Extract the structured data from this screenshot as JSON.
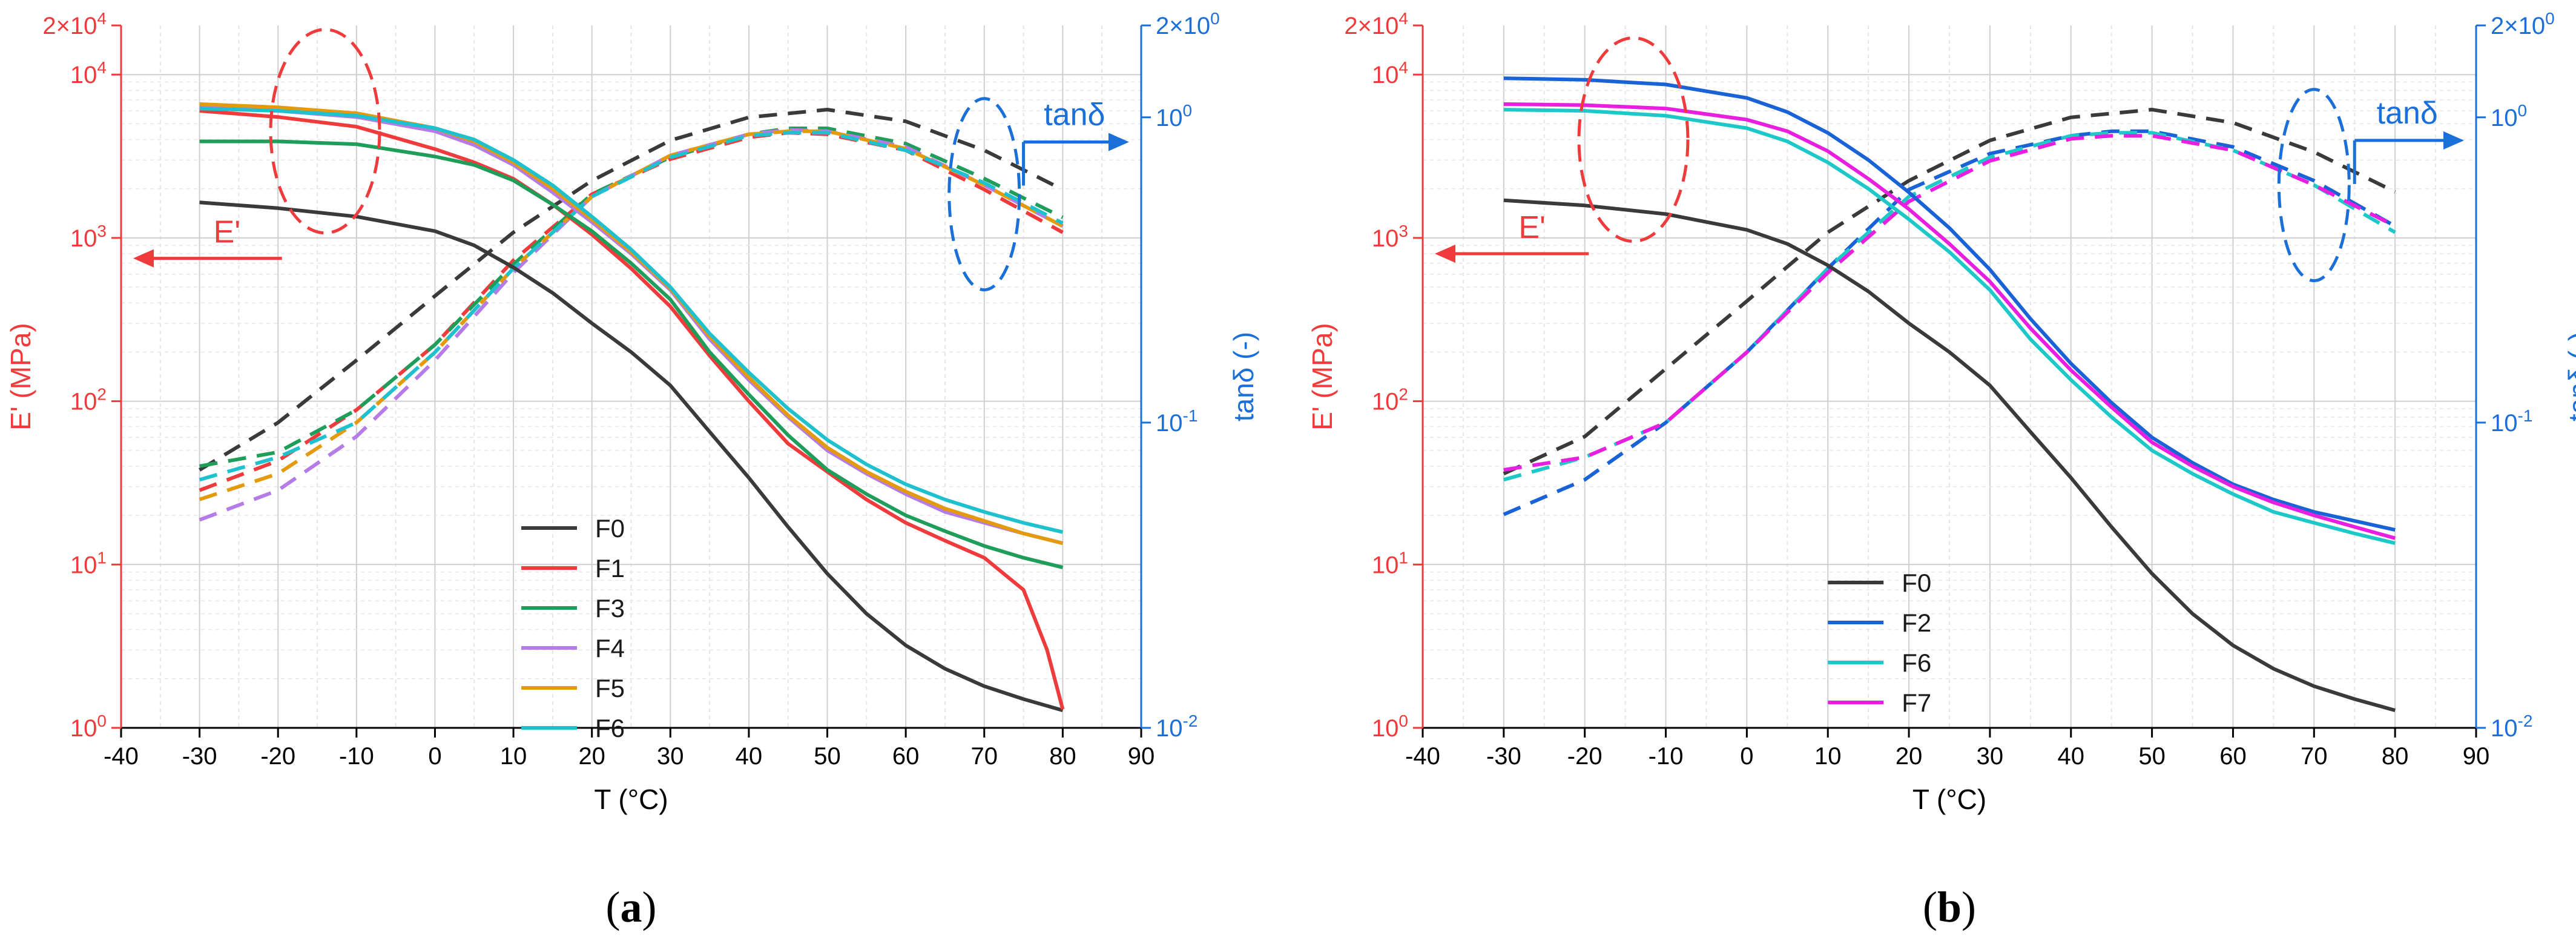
{
  "chart_data": [
    {
      "type": "line",
      "panel_label": "a",
      "panel_caption": [
        "(",
        "a",
        ")"
      ],
      "xlabel": "T (°C)",
      "ylabel_left": "E' (MPa)",
      "ylabel_right": "tanδ (-)",
      "xlim": [
        -40,
        90
      ],
      "xticks": [
        "-40",
        "-30",
        "-20",
        "-10",
        "0",
        "10",
        "20",
        "30",
        "40",
        "50",
        "60",
        "70",
        "80",
        "90"
      ],
      "ylim_left": [
        1,
        20000
      ],
      "yticks_left": [
        {
          "value": 1,
          "base": "10",
          "exp": "0"
        },
        {
          "value": 10,
          "base": "10",
          "exp": "1"
        },
        {
          "value": 100,
          "base": "10",
          "exp": "2"
        },
        {
          "value": 1000,
          "base": "10",
          "exp": "3"
        },
        {
          "value": 10000,
          "base": "10",
          "exp": "4"
        },
        {
          "value": 20000,
          "base": "2×10",
          "exp": "4"
        }
      ],
      "ylim_right": [
        0.01,
        2
      ],
      "yticks_right": [
        {
          "value": 0.01,
          "base": "10",
          "exp": "-2"
        },
        {
          "value": 0.1,
          "base": "10",
          "exp": "-1"
        },
        {
          "value": 1,
          "base": "10",
          "exp": "0"
        },
        {
          "value": 2,
          "base": "2×10",
          "exp": "0"
        }
      ],
      "annotations": {
        "eprime": "E'",
        "tand": "tanδ"
      },
      "legend": [
        "F0",
        "F1",
        "F3",
        "F4",
        "F5",
        "F6"
      ],
      "series": [
        {
          "name": "F0",
          "color": "#3a3a3a",
          "x": [
            -30,
            -20,
            -10,
            0,
            5,
            10,
            15,
            20,
            25,
            30,
            35,
            40,
            45,
            50,
            55,
            60,
            65,
            70,
            75,
            80
          ],
          "modulus": [
            1650,
            1520,
            1350,
            1100,
            900,
            660,
            460,
            300,
            200,
            125,
            65,
            34,
            17,
            8.8,
            5,
            3.2,
            2.3,
            1.8,
            1.5,
            1.28
          ],
          "tand_x": [
            -30,
            -20,
            -10,
            0,
            10,
            20,
            30,
            40,
            50,
            60,
            70,
            80
          ],
          "tand": [
            0.07,
            0.1,
            0.16,
            0.26,
            0.42,
            0.62,
            0.84,
            1.0,
            1.06,
            0.97,
            0.78,
            0.58
          ]
        },
        {
          "name": "F1",
          "color": "#ef3b3b",
          "x": [
            -30,
            -20,
            -10,
            0,
            5,
            10,
            15,
            20,
            25,
            30,
            35,
            40,
            45,
            50,
            55,
            60,
            65,
            70,
            75,
            78,
            80
          ],
          "modulus": [
            6000,
            5500,
            4800,
            3500,
            2900,
            2300,
            1600,
            1050,
            650,
            380,
            190,
            100,
            55,
            37,
            25,
            18,
            14,
            11,
            7,
            3,
            1.3
          ],
          "tand_x": [
            -30,
            -20,
            -10,
            0,
            10,
            20,
            30,
            40,
            45,
            50,
            60,
            70,
            80
          ],
          "tand": [
            0.06,
            0.075,
            0.11,
            0.18,
            0.34,
            0.56,
            0.73,
            0.86,
            0.89,
            0.88,
            0.78,
            0.58,
            0.42
          ]
        },
        {
          "name": "F3",
          "color": "#1f9d5a",
          "x": [
            -30,
            -20,
            -10,
            0,
            5,
            10,
            15,
            20,
            25,
            30,
            35,
            40,
            45,
            50,
            55,
            60,
            65,
            70,
            75,
            80
          ],
          "modulus": [
            3900,
            3900,
            3750,
            3150,
            2800,
            2250,
            1600,
            1100,
            700,
            420,
            200,
            110,
            62,
            38,
            27,
            20,
            16,
            13,
            11,
            9.6
          ],
          "tand_x": [
            -30,
            -20,
            -10,
            0,
            10,
            20,
            30,
            40,
            45,
            50,
            60,
            70,
            80
          ],
          "tand": [
            0.072,
            0.08,
            0.11,
            0.18,
            0.33,
            0.56,
            0.74,
            0.88,
            0.92,
            0.92,
            0.82,
            0.63,
            0.47
          ]
        },
        {
          "name": "F4",
          "color": "#b57be6",
          "x": [
            -30,
            -20,
            -10,
            0,
            5,
            10,
            15,
            20,
            25,
            30,
            35,
            40,
            45,
            50,
            55,
            60,
            65,
            70,
            75,
            80
          ],
          "modulus": [
            6300,
            6000,
            5500,
            4500,
            3700,
            2800,
            1900,
            1250,
            800,
            480,
            240,
            135,
            80,
            50,
            36,
            27,
            21,
            18,
            15.5,
            13.5
          ],
          "tand_x": [
            -30,
            -20,
            -10,
            0,
            10,
            20,
            30,
            40,
            45,
            50,
            60,
            70,
            80
          ],
          "tand": [
            0.048,
            0.06,
            0.09,
            0.16,
            0.31,
            0.55,
            0.75,
            0.88,
            0.91,
            0.9,
            0.8,
            0.6,
            0.44
          ]
        },
        {
          "name": "F5",
          "color": "#e39a0c",
          "x": [
            -30,
            -20,
            -10,
            0,
            5,
            10,
            15,
            20,
            25,
            30,
            35,
            40,
            45,
            50,
            55,
            60,
            65,
            70,
            75,
            80
          ],
          "modulus": [
            6600,
            6300,
            5800,
            4700,
            3900,
            2900,
            2000,
            1300,
            820,
            490,
            250,
            140,
            82,
            52,
            37,
            28,
            22,
            18.5,
            15.5,
            13.5
          ],
          "tand_x": [
            -30,
            -20,
            -10,
            0,
            10,
            20,
            30,
            40,
            45,
            50,
            60,
            70,
            80
          ],
          "tand": [
            0.056,
            0.068,
            0.1,
            0.17,
            0.32,
            0.55,
            0.75,
            0.88,
            0.9,
            0.9,
            0.79,
            0.6,
            0.44
          ]
        },
        {
          "name": "F6",
          "color": "#1fc1cf",
          "x": [
            -30,
            -20,
            -10,
            0,
            5,
            10,
            15,
            20,
            25,
            30,
            35,
            40,
            45,
            50,
            55,
            60,
            65,
            70,
            75,
            80
          ],
          "modulus": [
            6200,
            6000,
            5600,
            4700,
            4000,
            3000,
            2100,
            1350,
            850,
            500,
            260,
            150,
            90,
            58,
            41,
            31,
            25,
            21,
            18,
            15.8
          ],
          "tand_x": [
            -30,
            -20,
            -10,
            0,
            10,
            20,
            30,
            40,
            45,
            50,
            60,
            70,
            80
          ],
          "tand": [
            0.065,
            0.077,
            0.1,
            0.17,
            0.32,
            0.55,
            0.74,
            0.87,
            0.89,
            0.89,
            0.78,
            0.61,
            0.45
          ]
        }
      ]
    },
    {
      "type": "line",
      "panel_label": "b",
      "panel_caption": [
        "(",
        "b",
        ")"
      ],
      "xlabel": "T (°C)",
      "ylabel_left": "E' (MPa)",
      "ylabel_right": "tanδ (-)",
      "xlim": [
        -40,
        90
      ],
      "xticks": [
        "-40",
        "-30",
        "-20",
        "-10",
        "0",
        "10",
        "20",
        "30",
        "40",
        "50",
        "60",
        "70",
        "80",
        "90"
      ],
      "ylim_left": [
        1,
        20000
      ],
      "yticks_left": [
        {
          "value": 1,
          "base": "10",
          "exp": "0"
        },
        {
          "value": 10,
          "base": "10",
          "exp": "1"
        },
        {
          "value": 100,
          "base": "10",
          "exp": "2"
        },
        {
          "value": 1000,
          "base": "10",
          "exp": "3"
        },
        {
          "value": 10000,
          "base": "10",
          "exp": "4"
        },
        {
          "value": 20000,
          "base": "2×10",
          "exp": "4"
        }
      ],
      "ylim_right": [
        0.01,
        2
      ],
      "yticks_right": [
        {
          "value": 0.01,
          "base": "10",
          "exp": "-2"
        },
        {
          "value": 0.1,
          "base": "10",
          "exp": "-1"
        },
        {
          "value": 1,
          "base": "10",
          "exp": "0"
        },
        {
          "value": 2,
          "base": "2×10",
          "exp": "0"
        }
      ],
      "annotations": {
        "eprime": "E'",
        "tand": "tanδ"
      },
      "legend": [
        "F0",
        "F2",
        "F6",
        "F7"
      ],
      "series": [
        {
          "name": "F0",
          "color": "#3a3a3a",
          "x": [
            -30,
            -20,
            -10,
            0,
            5,
            10,
            15,
            20,
            25,
            30,
            35,
            40,
            45,
            50,
            55,
            60,
            65,
            70,
            75,
            80
          ],
          "modulus": [
            1700,
            1580,
            1400,
            1120,
            920,
            680,
            470,
            300,
            200,
            125,
            65,
            34,
            17,
            8.8,
            5,
            3.2,
            2.3,
            1.8,
            1.5,
            1.28
          ],
          "tand_x": [
            -30,
            -20,
            -10,
            0,
            10,
            20,
            30,
            40,
            50,
            60,
            70,
            80
          ],
          "tand": [
            0.068,
            0.09,
            0.15,
            0.25,
            0.42,
            0.62,
            0.84,
            1.0,
            1.06,
            0.96,
            0.77,
            0.57
          ]
        },
        {
          "name": "F2",
          "color": "#1a63d6",
          "x": [
            -30,
            -20,
            -10,
            0,
            5,
            10,
            15,
            20,
            25,
            30,
            35,
            40,
            45,
            50,
            55,
            60,
            65,
            70,
            75,
            80
          ],
          "modulus": [
            9500,
            9300,
            8700,
            7200,
            5900,
            4400,
            3000,
            1900,
            1150,
            640,
            320,
            170,
            98,
            60,
            42,
            31,
            25,
            21,
            18.5,
            16.3
          ],
          "tand_x": [
            -30,
            -20,
            -10,
            0,
            10,
            20,
            30,
            40,
            45,
            50,
            60,
            70,
            80
          ],
          "tand": [
            0.05,
            0.065,
            0.1,
            0.17,
            0.32,
            0.58,
            0.76,
            0.87,
            0.9,
            0.9,
            0.8,
            0.62,
            0.44
          ]
        },
        {
          "name": "F6",
          "color": "#1fc8c8",
          "x": [
            -30,
            -20,
            -10,
            0,
            5,
            10,
            15,
            20,
            25,
            30,
            35,
            40,
            45,
            50,
            55,
            60,
            65,
            70,
            75,
            80
          ],
          "modulus": [
            6100,
            6000,
            5600,
            4700,
            3900,
            2900,
            2000,
            1300,
            820,
            480,
            240,
            135,
            80,
            50,
            36,
            27,
            21,
            18,
            15.5,
            13.5
          ],
          "tand_x": [
            -30,
            -20,
            -10,
            0,
            10,
            20,
            30,
            40,
            45,
            50,
            60,
            70,
            80
          ],
          "tand": [
            0.065,
            0.077,
            0.1,
            0.17,
            0.32,
            0.55,
            0.74,
            0.87,
            0.89,
            0.89,
            0.78,
            0.6,
            0.42
          ]
        },
        {
          "name": "F7",
          "color": "#e81ee0",
          "x": [
            -30,
            -20,
            -10,
            0,
            5,
            10,
            15,
            20,
            25,
            30,
            35,
            40,
            45,
            50,
            55,
            60,
            65,
            70,
            75,
            80
          ],
          "modulus": [
            6600,
            6500,
            6200,
            5300,
            4500,
            3400,
            2300,
            1500,
            920,
            540,
            280,
            155,
            92,
            56,
            40,
            30,
            24,
            20,
            17,
            14.5
          ],
          "tand_x": [
            -30,
            -20,
            -10,
            0,
            10,
            20,
            30,
            40,
            45,
            50,
            60,
            70,
            80
          ],
          "tand": [
            0.07,
            0.077,
            0.1,
            0.17,
            0.31,
            0.53,
            0.72,
            0.85,
            0.87,
            0.87,
            0.78,
            0.6,
            0.44
          ]
        }
      ]
    }
  ]
}
